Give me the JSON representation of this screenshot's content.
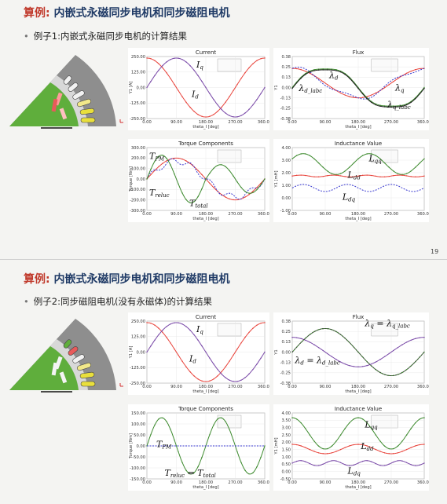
{
  "page_number": "19",
  "sections": [
    {
      "title_prefix": "算例:",
      "title_main": " 内嵌式永磁同步电机和同步磁阻电机",
      "subtitle": "例子1:内嵌式永磁同步电机的计算结果",
      "plots": [
        {
          "id": "s1-current",
          "title": "Current",
          "ylabel": "Y1 [A]",
          "xlabel": "theta_I [deg]",
          "yticks": [
            "250.00",
            "125.00",
            "0.00",
            "-125.00",
            "-250.00"
          ],
          "xticks": [
            "0.00",
            "90.00",
            "180.00",
            "270.00",
            "360.00"
          ],
          "labels": [
            {
              "main": "I",
              "sub": "q"
            },
            {
              "main": "I",
              "sub": "d"
            }
          ]
        },
        {
          "id": "s1-flux",
          "title": "Flux",
          "ylabel": "Y1",
          "xlabel": "theta_I [deg]",
          "yticks": [
            "0.38",
            "0.25",
            "0.13",
            "0.00",
            "-0.13",
            "-0.25",
            "-0.38"
          ],
          "xticks": [
            "0.00",
            "90.00",
            "180.00",
            "270.00",
            "360.00"
          ],
          "labels": [
            {
              "main": "λ",
              "sub": "d"
            },
            {
              "main": "λ",
              "sub": "d_labc"
            },
            {
              "main": "λ",
              "sub": "q"
            },
            {
              "main": "λ",
              "sub": "q_labc"
            }
          ]
        },
        {
          "id": "s1-torque",
          "title": "Torque Components",
          "ylabel": "Torque [Nm]",
          "xlabel": "theta_I [deg]",
          "yticks": [
            "300.00",
            "200.00",
            "100.00",
            "0.00",
            "-100.00",
            "-200.00",
            "-300.00"
          ],
          "xticks": [
            "0.00",
            "90.00",
            "180.00",
            "270.00",
            "360.00"
          ],
          "labels": [
            {
              "main": "T",
              "sub": "PM"
            },
            {
              "main": "T",
              "sub": "reluc"
            },
            {
              "main": "T",
              "sub": "total"
            }
          ]
        },
        {
          "id": "s1-induct",
          "title": "Inductance Value",
          "ylabel": "Y1 [mH]",
          "xlabel": "theta_I [deg]",
          "yticks": [
            "4.00",
            "3.00",
            "2.00",
            "1.00",
            "0.00",
            "-1.00"
          ],
          "xticks": [
            "0.00",
            "90.00",
            "180.00",
            "270.00",
            "360.00"
          ],
          "labels": [
            {
              "main": "L",
              "sub": "qq"
            },
            {
              "main": "L",
              "sub": "dd"
            },
            {
              "main": "L",
              "sub": "dq"
            }
          ]
        }
      ]
    },
    {
      "title_prefix": "算例:",
      "title_main": " 内嵌式永磁同步电机和同步磁阻电机",
      "subtitle": "例子2:同步磁阻电机(没有永磁体)的计算结果",
      "plots": [
        {
          "id": "s2-current",
          "title": "Current",
          "ylabel": "Y1 [A]",
          "xlabel": "theta_I [deg]",
          "yticks": [
            "250.00",
            "125.00",
            "0.00",
            "-125.00",
            "-250.00"
          ],
          "xticks": [
            "0.00",
            "90.00",
            "180.00",
            "270.00",
            "360.00"
          ],
          "labels": [
            {
              "main": "I",
              "sub": "q"
            },
            {
              "main": "I",
              "sub": "d"
            }
          ]
        },
        {
          "id": "s2-flux",
          "title": "Flux",
          "ylabel": "Y1",
          "xlabel": "theta_I [deg]",
          "yticks": [
            "0.38",
            "0.25",
            "0.13",
            "0.00",
            "-0.13",
            "-0.25",
            "-0.38"
          ],
          "xticks": [
            "0.00",
            "90.00",
            "180.00",
            "270.00",
            "360.00"
          ],
          "labels": [
            {
              "main": "λ",
              "sub": "q",
              "eq_main": "λ",
              "eq_sub": "q_labc"
            },
            {
              "main": "λ",
              "sub": "d",
              "eq_main": "λ",
              "eq_sub": "d_labc"
            }
          ]
        },
        {
          "id": "s2-torque",
          "title": "Torque Components",
          "ylabel": "Torque [Nm]",
          "xlabel": "theta_I [deg]",
          "yticks": [
            "150.00",
            "100.00",
            "50.00",
            "0.00",
            "-50.00",
            "-100.00",
            "-150.00"
          ],
          "xticks": [
            "0.00",
            "90.00",
            "180.00",
            "270.00",
            "360.00"
          ],
          "labels": [
            {
              "main": "T",
              "sub": "PM"
            },
            {
              "main": "T",
              "sub": "reluc",
              "eq_main": "T",
              "eq_sub": "total"
            }
          ]
        },
        {
          "id": "s2-induct",
          "title": "Inductance Value",
          "ylabel": "Y1 [mH]",
          "xlabel": "theta_I [deg]",
          "yticks": [
            "4.00",
            "3.50",
            "3.00",
            "2.50",
            "2.00",
            "1.50",
            "1.00",
            "0.50",
            "0.00",
            "-0.50"
          ],
          "xticks": [
            "0.00",
            "90.00",
            "180.00",
            "270.00",
            "360.00"
          ],
          "labels": [
            {
              "main": "L",
              "sub": "qq"
            },
            {
              "main": "L",
              "sub": "dd"
            },
            {
              "main": "L",
              "sub": "dq"
            }
          ]
        }
      ]
    }
  ],
  "colors": {
    "red": "#e8423a",
    "purple": "#7a4aa8",
    "green": "#3d8a2e",
    "blue": "#3a3ad0",
    "title": "#1f3a66",
    "accent": "#c0392b"
  }
}
